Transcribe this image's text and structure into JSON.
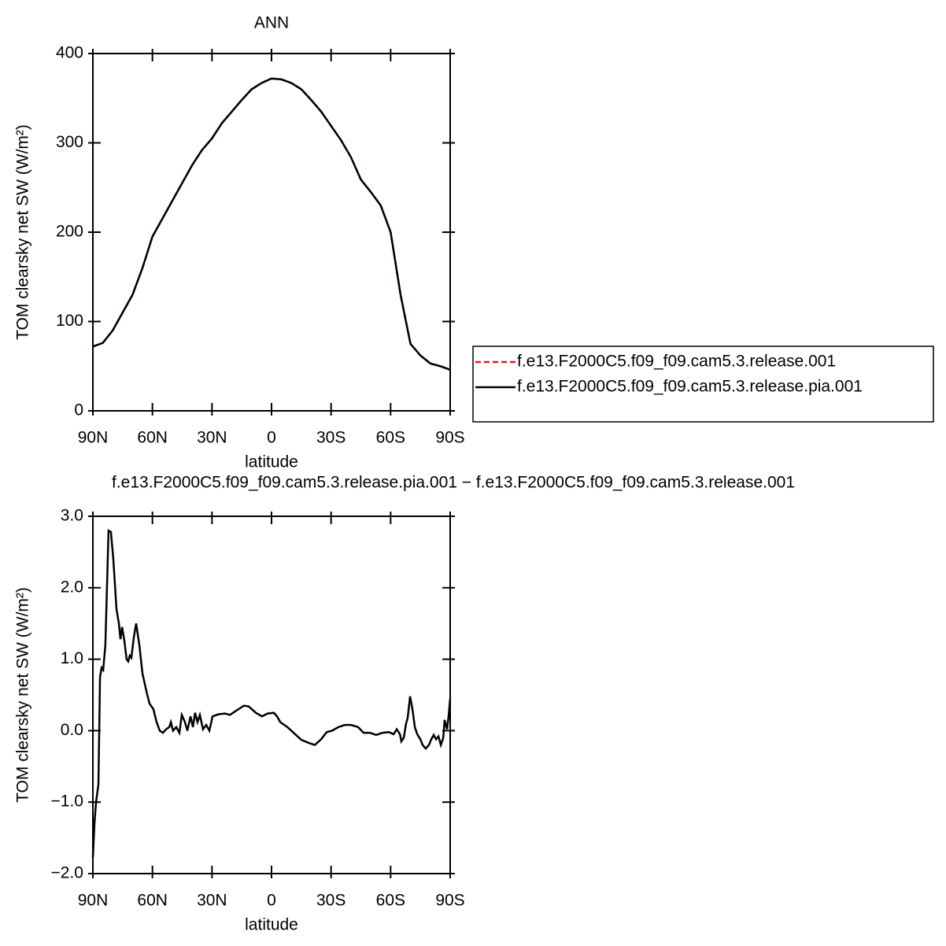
{
  "chart_data": [
    {
      "type": "line",
      "title": "ANN",
      "xlabel": "latitude",
      "ylabel": "TOM clearsky net SW (W/m²)",
      "x": [
        90,
        85,
        80,
        75,
        70,
        65,
        60,
        55,
        50,
        45,
        40,
        35,
        30,
        25,
        20,
        15,
        10,
        5,
        0,
        -5,
        -10,
        -15,
        -20,
        -25,
        -30,
        -35,
        -40,
        -45,
        -50,
        -55,
        -60,
        -65,
        -70,
        -75,
        -80,
        -85,
        -90
      ],
      "series": [
        {
          "name": "f.e13.F2000C5.f09_f09.cam5.3.release.001",
          "color": "#e41a1c",
          "dash": true,
          "values": [
            72,
            76,
            90,
            110,
            130,
            160,
            195,
            215,
            235,
            255,
            275,
            292,
            305,
            322,
            335,
            348,
            360,
            367,
            372,
            371,
            367,
            360,
            348,
            335,
            319,
            303,
            284,
            259,
            245,
            230,
            200,
            130,
            75,
            62,
            53,
            50,
            46
          ]
        },
        {
          "name": "f.e13.F2000C5.f09_f09.cam5.3.release.pia.001",
          "color": "#000000",
          "dash": false,
          "values": [
            72,
            76,
            90,
            110,
            130,
            160,
            195,
            215,
            235,
            255,
            275,
            292,
            305,
            322,
            335,
            348,
            360,
            367,
            372,
            371,
            367,
            360,
            348,
            335,
            319,
            303,
            284,
            259,
            245,
            230,
            200,
            130,
            75,
            62,
            53,
            50,
            46
          ]
        }
      ],
      "xlim": [
        90,
        -90
      ],
      "xticks": [
        {
          "value": 90,
          "label": "90N"
        },
        {
          "value": 60,
          "label": "60N"
        },
        {
          "value": 30,
          "label": "30N"
        },
        0,
        {
          "value": -30,
          "label": "30S"
        },
        {
          "value": -60,
          "label": "60S"
        },
        {
          "value": -90,
          "label": "90S"
        }
      ],
      "ylim": [
        0,
        400
      ],
      "yticks": [
        0,
        100,
        200,
        300,
        400
      ],
      "legend": "right"
    },
    {
      "type": "line",
      "title": "f.e13.F2000C5.f09_f09.cam5.3.release.pia.001 − f.e13.F2000C5.f09_f09.cam5.3.release.001",
      "xlabel": "latitude",
      "ylabel": "TOM clearsky net SW (W/m²)",
      "x": [
        90,
        89.2,
        88.4,
        87.2,
        86.4,
        85.6,
        84.8,
        83.7,
        82.1,
        80.9,
        79.7,
        78.1,
        76.9,
        76.1,
        75.3,
        74.1,
        73.0,
        72.2,
        71.4,
        70.6,
        69.4,
        68.2,
        66.6,
        65.0,
        63.0,
        61.5,
        59.5,
        57.9,
        56.3,
        54.7,
        53.1,
        51.5,
        50.7,
        49.6,
        48.0,
        46.4,
        45.2,
        43.6,
        42.4,
        40.8,
        39.6,
        38.5,
        37.3,
        36.1,
        34.5,
        32.9,
        31.3,
        29.7,
        26.6,
        23.4,
        21.0,
        17.8,
        13.9,
        11.5,
        7.9,
        4.8,
        2.0,
        -1.2,
        -2.8,
        -4.4,
        -8.0,
        -11.9,
        -15.1,
        -18.6,
        -21.8,
        -25.0,
        -27.8,
        -30.5,
        -33.7,
        -36.9,
        -40.1,
        -43.6,
        -46.4,
        -49.6,
        -52.7,
        -55.9,
        -59.1,
        -61.5,
        -63.1,
        -64.7,
        -65.4,
        -66.6,
        -67.8,
        -68.6,
        -69.8,
        -71.0,
        -72.2,
        -73.4,
        -75.0,
        -76.1,
        -77.7,
        -79.3,
        -80.5,
        -81.7,
        -82.9,
        -84.1,
        -85.3,
        -86.5,
        -87.2,
        -88.4,
        -89.2,
        -90
      ],
      "series": [
        {
          "color": "#000000",
          "dash": false,
          "values": [
            -1.78,
            -1.3,
            -1.0,
            -0.75,
            0.75,
            0.88,
            0.85,
            1.2,
            2.8,
            2.78,
            2.4,
            1.7,
            1.5,
            1.28,
            1.45,
            1.25,
            1.0,
            0.97,
            1.05,
            1.02,
            1.3,
            1.5,
            1.2,
            0.8,
            0.55,
            0.38,
            0.3,
            0.12,
            0.0,
            -0.03,
            0.02,
            0.05,
            0.12,
            0.0,
            0.05,
            -0.03,
            0.22,
            0.12,
            0.0,
            0.2,
            0.05,
            0.25,
            0.12,
            0.22,
            0.02,
            0.08,
            0.0,
            0.2,
            0.23,
            0.24,
            0.22,
            0.28,
            0.35,
            0.34,
            0.25,
            0.2,
            0.24,
            0.25,
            0.2,
            0.12,
            0.05,
            -0.05,
            -0.13,
            -0.17,
            -0.2,
            -0.12,
            -0.02,
            0.0,
            0.05,
            0.08,
            0.08,
            0.05,
            -0.03,
            -0.03,
            -0.06,
            -0.03,
            -0.02,
            -0.05,
            0.02,
            -0.05,
            -0.15,
            -0.1,
            0.1,
            0.18,
            0.48,
            0.3,
            0.05,
            -0.05,
            -0.12,
            -0.2,
            -0.25,
            -0.2,
            -0.12,
            -0.06,
            -0.12,
            -0.08,
            -0.2,
            -0.1,
            0.15,
            0.02,
            0.2,
            0.45
          ]
        }
      ],
      "xlim": [
        90,
        -90
      ],
      "xticks": [
        {
          "value": 90,
          "label": "90N"
        },
        {
          "value": 60,
          "label": "60N"
        },
        {
          "value": 30,
          "label": "30N"
        },
        0,
        {
          "value": -30,
          "label": "30S"
        },
        {
          "value": -60,
          "label": "60S"
        },
        {
          "value": -90,
          "label": "90S"
        }
      ],
      "ylim": [
        -2,
        3
      ],
      "yticks": [
        {
          "value": -2,
          "label": "−2.0"
        },
        {
          "value": -1,
          "label": "−1.0"
        },
        {
          "value": 0,
          "label": "0.0"
        },
        {
          "value": 1,
          "label": "1.0"
        },
        {
          "value": 2,
          "label": "2.0"
        },
        {
          "value": 3,
          "label": "3.0"
        }
      ]
    }
  ]
}
